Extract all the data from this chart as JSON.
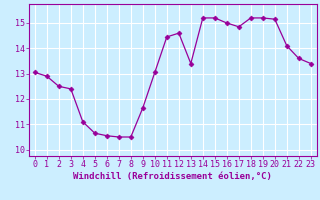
{
  "x": [
    0,
    1,
    2,
    3,
    4,
    5,
    6,
    7,
    8,
    9,
    10,
    11,
    12,
    13,
    14,
    15,
    16,
    17,
    18,
    19,
    20,
    21,
    22,
    23
  ],
  "y": [
    13.05,
    12.9,
    12.5,
    12.4,
    11.1,
    10.65,
    10.55,
    10.5,
    10.5,
    11.65,
    13.05,
    14.45,
    14.6,
    13.4,
    15.2,
    15.2,
    15.0,
    14.85,
    15.2,
    15.2,
    15.15,
    14.1,
    13.6,
    13.4
  ],
  "line_color": "#990099",
  "marker": "D",
  "markersize": 2.5,
  "linewidth": 0.9,
  "bg_color": "#cceeff",
  "grid_color": "#ffffff",
  "xlabel": "Windchill (Refroidissement éolien,°C)",
  "xlabel_fontsize": 6.5,
  "tick_fontsize": 6,
  "ylim": [
    9.75,
    15.75
  ],
  "xlim": [
    -0.5,
    23.5
  ],
  "yticks": [
    10,
    11,
    12,
    13,
    14,
    15
  ],
  "xticks": [
    0,
    1,
    2,
    3,
    4,
    5,
    6,
    7,
    8,
    9,
    10,
    11,
    12,
    13,
    14,
    15,
    16,
    17,
    18,
    19,
    20,
    21,
    22,
    23
  ]
}
